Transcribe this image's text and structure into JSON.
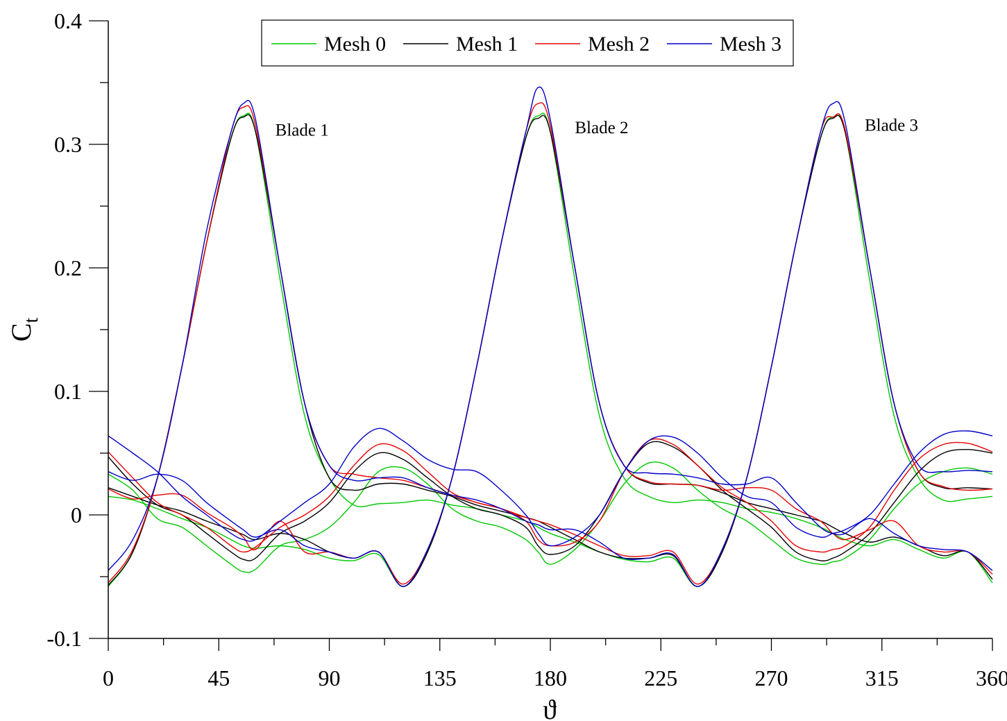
{
  "chart_data": {
    "type": "line",
    "title": "",
    "xlabel": "ϑ",
    "ylabel": "C",
    "ylabel_subscript": "t",
    "xlim": [
      0,
      360
    ],
    "ylim": [
      -0.1,
      0.4
    ],
    "xticks": [
      0,
      45,
      90,
      135,
      180,
      225,
      270,
      315,
      360
    ],
    "xtick_labels": [
      "0",
      "45",
      "90",
      "135",
      "180",
      "225",
      "270",
      "315",
      "360"
    ],
    "yticks": [
      -0.1,
      0,
      0.1,
      0.2,
      0.3,
      0.4
    ],
    "ytick_labels": [
      "-0.1",
      "0",
      "0.1",
      "0.2",
      "0.3",
      "0.4"
    ],
    "grid": false,
    "legend_position": "top-center",
    "annotations": [
      {
        "text": "Blade 1",
        "x": 68,
        "y": 0.307
      },
      {
        "text": "Blade 2",
        "x": 190,
        "y": 0.309
      },
      {
        "text": "Blade 3",
        "x": 308,
        "y": 0.311
      }
    ],
    "x": [
      0,
      10,
      20,
      30,
      40,
      50,
      55,
      60,
      70,
      80,
      90,
      100,
      110,
      120,
      130,
      140,
      150,
      160,
      170,
      175,
      180,
      190,
      200,
      210,
      220,
      230,
      240,
      250,
      260,
      270,
      280,
      290,
      295,
      300,
      310,
      320,
      330,
      340,
      350,
      360
    ],
    "series": [
      {
        "name": "Mesh 0",
        "color": "#00c800",
        "blades": [
          {
            "label": "Blade 1",
            "values": [
              -0.058,
              -0.03,
              0.03,
              0.12,
              0.22,
              0.305,
              0.323,
              0.31,
              0.19,
              0.08,
              0.03,
              0.008,
              0.009,
              0.01,
              0.012,
              0.008,
              0.005,
              0.0,
              -0.005,
              -0.01,
              -0.015,
              -0.022,
              -0.03,
              -0.036,
              -0.038,
              -0.035,
              -0.058,
              -0.03,
              0.03,
              0.12,
              0.22,
              0.305,
              0.322,
              0.31,
              0.19,
              0.08,
              0.03,
              0.012,
              0.013,
              0.015
            ]
          },
          {
            "label": "Blade 2",
            "values": [
              0.015,
              0.012,
              0.005,
              -0.003,
              -0.01,
              -0.02,
              -0.025,
              -0.027,
              -0.025,
              -0.028,
              -0.035,
              -0.037,
              -0.032,
              -0.058,
              -0.03,
              0.03,
              0.12,
              0.22,
              0.305,
              0.323,
              0.31,
              0.19,
              0.08,
              0.03,
              0.015,
              0.01,
              0.012,
              0.01,
              0.005,
              0.002,
              -0.003,
              -0.01,
              -0.015,
              -0.02,
              -0.025,
              -0.02,
              -0.028,
              -0.035,
              -0.03,
              -0.055
            ]
          },
          {
            "label": "Blade 3",
            "values": [
              0.033,
              0.02,
              -0.003,
              -0.01,
              -0.025,
              -0.04,
              -0.046,
              -0.044,
              -0.025,
              -0.02,
              -0.01,
              0.01,
              0.035,
              0.038,
              0.025,
              0.005,
              -0.005,
              -0.01,
              -0.02,
              -0.03,
              -0.04,
              -0.028,
              -0.005,
              0.025,
              0.042,
              0.038,
              0.02,
              0.005,
              -0.005,
              -0.02,
              -0.035,
              -0.04,
              -0.038,
              -0.035,
              -0.02,
              0.005,
              0.025,
              0.035,
              0.038,
              0.033
            ]
          }
        ]
      },
      {
        "name": "Mesh 1",
        "color": "#000000",
        "blades": [
          {
            "label": "Blade 1",
            "values": [
              -0.057,
              -0.03,
              0.03,
              0.12,
              0.22,
              0.305,
              0.322,
              0.31,
              0.2,
              0.09,
              0.03,
              0.02,
              0.025,
              0.025,
              0.02,
              0.015,
              0.008,
              0.003,
              -0.002,
              -0.005,
              -0.01,
              -0.02,
              -0.03,
              -0.035,
              -0.035,
              -0.033,
              -0.058,
              -0.03,
              0.03,
              0.12,
              0.22,
              0.305,
              0.321,
              0.31,
              0.2,
              0.09,
              0.035,
              0.022,
              0.022,
              0.021
            ]
          },
          {
            "label": "Blade 2",
            "values": [
              0.022,
              0.015,
              0.008,
              0.003,
              -0.005,
              -0.012,
              -0.016,
              -0.02,
              -0.015,
              -0.02,
              -0.03,
              -0.035,
              -0.03,
              -0.058,
              -0.03,
              0.03,
              0.12,
              0.22,
              0.305,
              0.321,
              0.31,
              0.2,
              0.09,
              0.04,
              0.026,
              0.025,
              0.024,
              0.018,
              0.01,
              0.005,
              0.0,
              -0.005,
              -0.01,
              -0.015,
              -0.022,
              -0.018,
              -0.025,
              -0.033,
              -0.03,
              -0.052
            ]
          },
          {
            "label": "Blade 3",
            "values": [
              0.047,
              0.025,
              0.008,
              0.0,
              -0.015,
              -0.03,
              -0.036,
              -0.035,
              -0.015,
              -0.005,
              0.01,
              0.035,
              0.05,
              0.045,
              0.03,
              0.015,
              0.005,
              0.0,
              -0.01,
              -0.025,
              -0.032,
              -0.025,
              0.0,
              0.035,
              0.058,
              0.055,
              0.04,
              0.02,
              0.005,
              -0.01,
              -0.03,
              -0.037,
              -0.035,
              -0.03,
              -0.015,
              0.01,
              0.035,
              0.05,
              0.053,
              0.05
            ]
          }
        ]
      },
      {
        "name": "Mesh 2",
        "color": "#e60000",
        "blades": [
          {
            "label": "Blade 1",
            "values": [
              -0.055,
              -0.028,
              0.03,
              0.12,
              0.22,
              0.31,
              0.33,
              0.315,
              0.2,
              0.09,
              0.04,
              0.033,
              0.03,
              0.028,
              0.022,
              0.016,
              0.01,
              0.005,
              -0.002,
              -0.005,
              -0.008,
              -0.016,
              -0.025,
              -0.033,
              -0.033,
              -0.03,
              -0.056,
              -0.028,
              0.03,
              0.12,
              0.22,
              0.31,
              0.322,
              0.312,
              0.2,
              0.09,
              0.035,
              0.023,
              0.02,
              0.021
            ]
          },
          {
            "label": "Blade 2",
            "values": [
              0.021,
              0.013,
              0.016,
              0.016,
              0.002,
              -0.01,
              -0.018,
              -0.028,
              -0.005,
              -0.03,
              -0.03,
              -0.035,
              -0.03,
              -0.056,
              -0.028,
              0.03,
              0.12,
              0.22,
              0.31,
              0.333,
              0.315,
              0.2,
              0.09,
              0.04,
              0.027,
              0.025,
              0.024,
              0.02,
              0.022,
              0.02,
              0.005,
              -0.005,
              -0.015,
              -0.02,
              -0.012,
              -0.005,
              -0.025,
              -0.03,
              -0.03,
              -0.048
            ]
          },
          {
            "label": "Blade 3",
            "values": [
              0.051,
              0.03,
              0.01,
              0.0,
              -0.01,
              -0.025,
              -0.03,
              -0.026,
              -0.01,
              0.0,
              0.015,
              0.04,
              0.057,
              0.052,
              0.035,
              0.018,
              0.01,
              0.005,
              -0.005,
              -0.02,
              -0.025,
              -0.022,
              -0.005,
              0.035,
              0.06,
              0.057,
              0.04,
              0.022,
              0.01,
              -0.005,
              -0.025,
              -0.03,
              -0.028,
              -0.025,
              -0.01,
              0.02,
              0.045,
              0.057,
              0.058,
              0.051
            ]
          }
        ]
      },
      {
        "name": "Mesh 3",
        "color": "#0000c8",
        "blades": [
          {
            "label": "Blade 1",
            "values": [
              -0.045,
              -0.02,
              0.03,
              0.12,
              0.23,
              0.31,
              0.333,
              0.32,
              0.2,
              0.09,
              0.04,
              0.028,
              0.03,
              0.03,
              0.022,
              0.016,
              0.012,
              0.005,
              -0.005,
              -0.008,
              -0.012,
              -0.012,
              -0.022,
              -0.035,
              -0.035,
              -0.032,
              -0.058,
              -0.028,
              0.03,
              0.12,
              0.22,
              0.31,
              0.333,
              0.318,
              0.2,
              0.09,
              0.04,
              0.035,
              0.036,
              0.035
            ]
          },
          {
            "label": "Blade 2",
            "values": [
              0.035,
              0.028,
              0.033,
              0.028,
              0.01,
              -0.005,
              -0.012,
              -0.018,
              -0.012,
              -0.025,
              -0.03,
              -0.035,
              -0.03,
              -0.058,
              -0.028,
              0.03,
              0.12,
              0.22,
              0.31,
              0.346,
              0.32,
              0.2,
              0.09,
              0.04,
              0.034,
              0.033,
              0.03,
              0.025,
              0.025,
              0.03,
              0.01,
              -0.01,
              -0.015,
              -0.015,
              -0.003,
              -0.015,
              -0.025,
              -0.028,
              -0.03,
              -0.045
            ]
          },
          {
            "label": "Blade 3",
            "values": [
              0.064,
              0.05,
              0.035,
              0.015,
              0.0,
              -0.015,
              -0.02,
              -0.02,
              -0.005,
              0.01,
              0.025,
              0.055,
              0.07,
              0.06,
              0.045,
              0.037,
              0.035,
              0.02,
              0.0,
              -0.015,
              -0.025,
              -0.018,
              0.0,
              0.035,
              0.06,
              0.063,
              0.05,
              0.03,
              0.015,
              0.01,
              -0.01,
              -0.018,
              -0.015,
              -0.012,
              0.0,
              0.025,
              0.05,
              0.065,
              0.068,
              0.064
            ]
          }
        ]
      }
    ]
  }
}
